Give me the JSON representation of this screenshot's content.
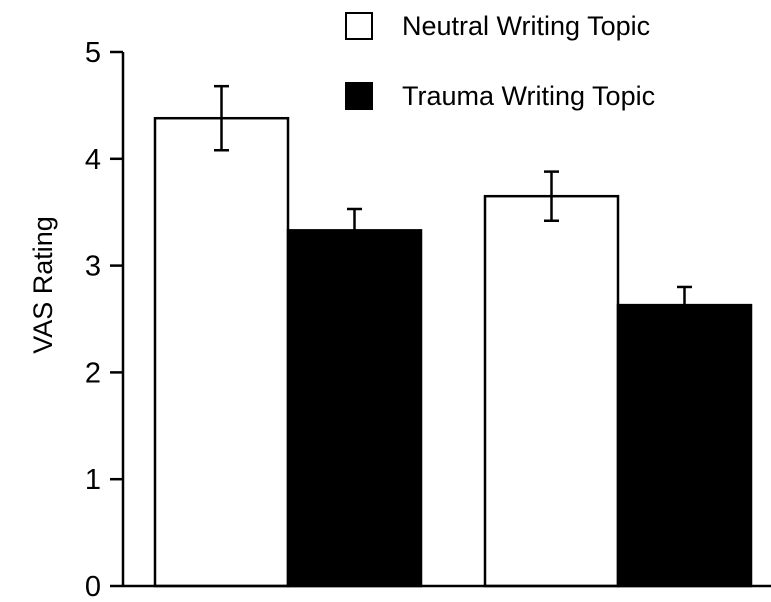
{
  "chart_data": {
    "type": "bar",
    "title": "",
    "xlabel": "",
    "ylabel": "VAS Rating",
    "ylim": [
      0,
      5
    ],
    "yticks": [
      "0",
      "1",
      "2",
      "3",
      "4",
      "5"
    ],
    "categories": [
      "",
      ""
    ],
    "series": [
      {
        "name": "Neutral Writing Topic",
        "color": "#ffffff",
        "values": [
          4.38,
          3.65
        ],
        "errors": [
          0.3,
          0.23
        ]
      },
      {
        "name": "Trauma Writing Topic",
        "color": "#000000",
        "values": [
          3.33,
          2.63
        ],
        "errors": [
          0.2,
          0.17
        ]
      }
    ],
    "legend_position": "top-right",
    "grid": false
  }
}
